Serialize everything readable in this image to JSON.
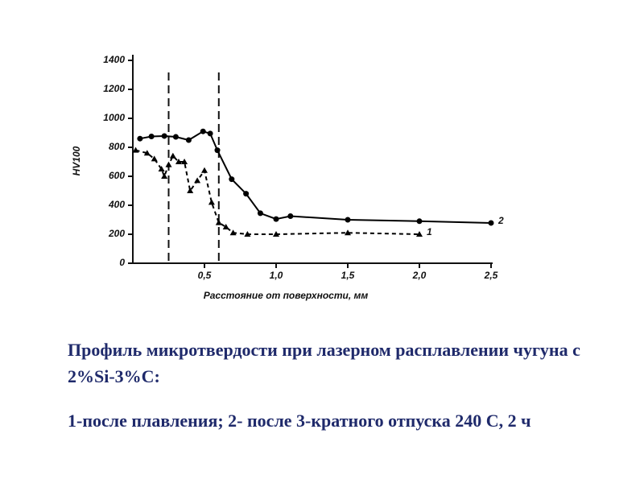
{
  "chart_data": {
    "type": "line",
    "y_label": "HV100",
    "x_label": "Расстояние от поверхности, мм",
    "xlim": [
      0,
      2.5
    ],
    "ylim": [
      0,
      1400
    ],
    "xticks": [
      {
        "value": 0.5,
        "label": "0,5"
      },
      {
        "value": 1.0,
        "label": "1,0"
      },
      {
        "value": 1.5,
        "label": "1,5"
      },
      {
        "value": 2.0,
        "label": "2,0"
      },
      {
        "value": 2.5,
        "label": "2,5"
      }
    ],
    "yticks": [
      0,
      200,
      400,
      600,
      800,
      1000,
      1200,
      1400
    ],
    "vlines": [
      0.25,
      0.6
    ],
    "series": [
      {
        "name": "2",
        "color": "#000000",
        "dashed": false,
        "marker": "circle",
        "x": [
          0.05,
          0.13,
          0.22,
          0.3,
          0.39,
          0.49,
          0.54,
          0.59,
          0.69,
          0.79,
          0.89,
          1.0,
          1.1,
          1.5,
          2.0,
          2.5
        ],
        "values": [
          860,
          875,
          878,
          872,
          850,
          910,
          895,
          780,
          580,
          480,
          345,
          305,
          325,
          300,
          290,
          278
        ]
      },
      {
        "name": "1",
        "color": "#000000",
        "dashed": true,
        "marker": "triangle",
        "x": [
          0.02,
          0.1,
          0.15,
          0.2,
          0.22,
          0.25,
          0.28,
          0.32,
          0.36,
          0.4,
          0.45,
          0.5,
          0.55,
          0.6,
          0.65,
          0.7,
          0.8,
          1.0,
          1.5,
          2.0
        ],
        "values": [
          780,
          760,
          720,
          650,
          600,
          680,
          740,
          700,
          700,
          500,
          570,
          640,
          420,
          280,
          250,
          210,
          200,
          200,
          210,
          200
        ]
      }
    ],
    "caption": [
      "Профиль микротвердости при лазерном расплавлении чугуна с 2%Si-3%С:",
      "1-после плавления; 2- после 3-кратного отпуска 240 С, 2 ч"
    ]
  }
}
